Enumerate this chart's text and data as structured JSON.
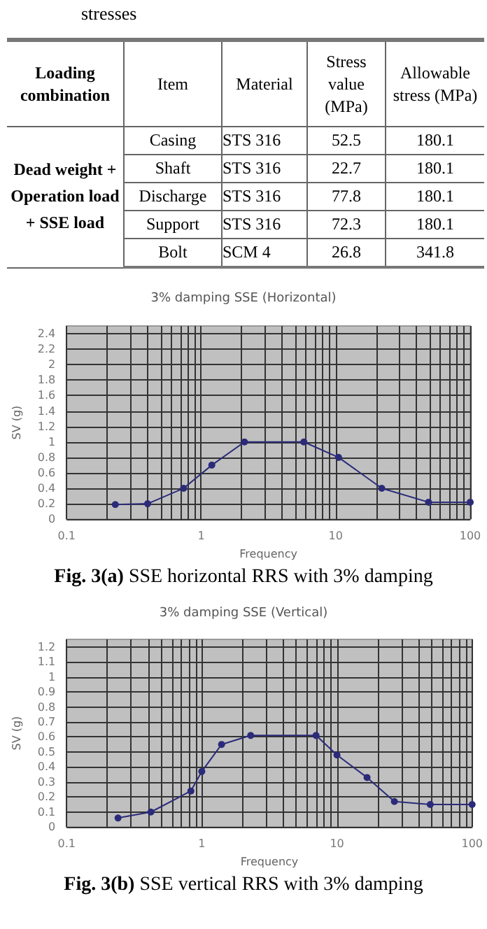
{
  "chart_data": [
    {
      "type": "other",
      "title": "stresses",
      "annotations": [
        "Loading combination",
        "Item",
        "Material",
        "Stress value (MPa)",
        "Allowable stress (MPa)",
        "Dead weight + Operation load + SSE load",
        "Casing",
        "STS 316",
        "52.5",
        "180.1",
        "Shaft",
        "STS 316",
        "22.7",
        "180.1",
        "Discharge",
        "STS 316",
        "77.8",
        "180.1",
        "Support",
        "STS 316",
        "72.3",
        "180.1",
        "Bolt",
        "SCM 4",
        "26.8",
        "341.8"
      ]
    },
    {
      "type": "line",
      "title": "3% damping SSE (Horizontal)",
      "xlabel": "Frequency",
      "ylabel": "SV (g)",
      "log": "x",
      "grid": true,
      "marker": "circle",
      "line_style": "solid",
      "annotations": [
        "Fig. 3(a) SSE horizontal RRS with 3% damping"
      ],
      "x": [
        0.23,
        0.4,
        0.74,
        1.2,
        2.1,
        5.8,
        10.5,
        22,
        49,
        100
      ],
      "series": [
        {
          "color": "#2b2b7a",
          "values": [
            0.19,
            0.2,
            0.4,
            0.7,
            1,
            1,
            0.8,
            0.4,
            0.22,
            0.22
          ]
        }
      ],
      "xlim": [
        0.1,
        100
      ],
      "xticks": [
        0.1,
        {
          "value": 0.2,
          "label": null
        },
        {
          "value": 0.3,
          "label": null
        },
        {
          "value": 0.4,
          "label": null
        },
        {
          "value": 0.5,
          "label": null
        },
        {
          "value": 0.6,
          "label": null
        },
        {
          "value": 0.7,
          "label": null
        },
        {
          "value": 0.8,
          "label": null
        },
        {
          "value": 0.9,
          "label": null
        },
        1,
        {
          "value": 2,
          "label": null
        },
        {
          "value": 3,
          "label": null
        },
        {
          "value": 4,
          "label": null
        },
        {
          "value": 5,
          "label": null
        },
        {
          "value": 6,
          "label": null
        },
        {
          "value": 7,
          "label": null
        },
        {
          "value": 8,
          "label": null
        },
        {
          "value": 9,
          "label": null
        },
        10,
        {
          "value": 20,
          "label": null
        },
        {
          "value": 30,
          "label": null
        },
        {
          "value": 40,
          "label": null
        },
        {
          "value": 50,
          "label": null
        },
        {
          "value": 60,
          "label": null
        },
        {
          "value": 70,
          "label": null
        },
        {
          "value": 80,
          "label": null
        },
        {
          "value": 90,
          "label": null
        },
        100
      ],
      "ylim": [
        0,
        2.5
      ],
      "yticks": [
        0,
        0.2,
        0.4,
        0.6,
        0.8,
        1,
        1.2,
        1.4,
        1.6,
        1.8,
        2,
        2.2,
        2.4
      ]
    },
    {
      "type": "line",
      "title": "3% damping SSE (Vertical)",
      "xlabel": "Frequency",
      "ylabel": "SV (g)",
      "log": "x",
      "grid": true,
      "marker": "circle",
      "line_style": "solid",
      "annotations": [
        "Fig. 3(b) SSE vertical RRS with 3% damping"
      ],
      "x": [
        0.24,
        0.42,
        0.83,
        1,
        1.4,
        2.3,
        7,
        10,
        16.7,
        26.6,
        49,
        100
      ],
      "series": [
        {
          "color": "#2b2b7a",
          "values": [
            0.06,
            0.1,
            0.24,
            0.37,
            0.55,
            0.61,
            0.61,
            0.48,
            0.33,
            0.17,
            0.15,
            0.15
          ]
        }
      ],
      "xlim": [
        0.1,
        100
      ],
      "xticks": [
        0.1,
        {
          "value": 0.2,
          "label": null
        },
        {
          "value": 0.3,
          "label": null
        },
        {
          "value": 0.4,
          "label": null
        },
        {
          "value": 0.5,
          "label": null
        },
        {
          "value": 0.6,
          "label": null
        },
        {
          "value": 0.7,
          "label": null
        },
        {
          "value": 0.8,
          "label": null
        },
        {
          "value": 0.9,
          "label": null
        },
        1,
        {
          "value": 2,
          "label": null
        },
        {
          "value": 3,
          "label": null
        },
        {
          "value": 4,
          "label": null
        },
        {
          "value": 5,
          "label": null
        },
        {
          "value": 6,
          "label": null
        },
        {
          "value": 7,
          "label": null
        },
        {
          "value": 8,
          "label": null
        },
        {
          "value": 9,
          "label": null
        },
        10,
        {
          "value": 20,
          "label": null
        },
        {
          "value": 30,
          "label": null
        },
        {
          "value": 40,
          "label": null
        },
        {
          "value": 50,
          "label": null
        },
        {
          "value": 60,
          "label": null
        },
        {
          "value": 70,
          "label": null
        },
        {
          "value": 80,
          "label": null
        },
        {
          "value": 90,
          "label": null
        },
        100
      ],
      "ylim": [
        0,
        1.25
      ],
      "yticks": [
        0,
        0.1,
        0.2,
        0.3,
        0.4,
        0.5,
        0.6,
        0.7,
        0.8,
        0.9,
        1,
        1.1,
        1.2
      ]
    }
  ]
}
